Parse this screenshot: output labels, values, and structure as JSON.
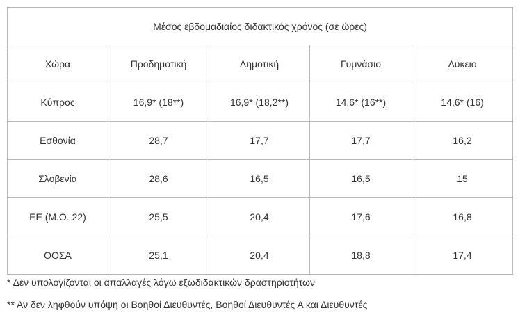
{
  "table": {
    "title": "Μέσος εβδομαδιαίος διδακτικός χρόνος (σε ώρες)",
    "header": [
      "Χώρα",
      "Προδημοτική",
      "Δημοτική",
      "Γυμνάσιο",
      "Λύκειο"
    ],
    "rows": [
      [
        "Κύπρος",
        "16,9* (18**)",
        "16,9* (18,2**)",
        "14,6* (16**)",
        "14,6* (16)"
      ],
      [
        "Εσθονία",
        "28,7",
        "17,7",
        "17,7",
        "16,2"
      ],
      [
        "Σλοβενία",
        "28,6",
        "16,5",
        "16,5",
        "15"
      ],
      [
        "ΕΕ (Μ.Ο. 22)",
        "25,5",
        "20,4",
        "17,6",
        "16,8"
      ],
      [
        "ΟΟΣΑ",
        "25,1",
        "20,4",
        "18,8",
        "17,4"
      ]
    ]
  },
  "footnotes": [
    "* Δεν υπολογίζονται οι απαλλαγές λόγω εξωδιδακτικών δραστηριοτήτων",
    "** Αν δεν ληφθούν υπόψη οι Βοηθοί Διευθυντές, Βοηθοί Διευθυντές Α και Διευθυντές"
  ]
}
